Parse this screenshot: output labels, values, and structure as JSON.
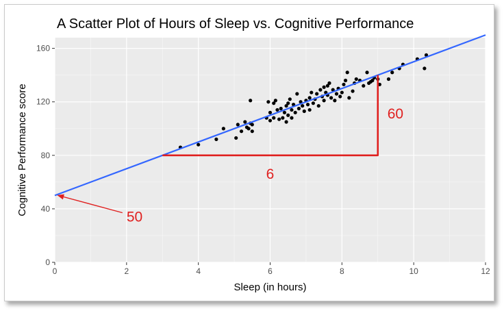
{
  "chart_data": {
    "type": "scatter",
    "title": "A Scatter Plot of Hours of Sleep vs. Cognitive Performance",
    "xlabel": "Sleep (in hours)",
    "ylabel": "Cognitive Performance score",
    "xlim": [
      0,
      12
    ],
    "ylim": [
      0,
      168
    ],
    "x_ticks": [
      0,
      2,
      4,
      6,
      8,
      10,
      12
    ],
    "x_tick_labels": [
      "0",
      "2",
      "4",
      "6",
      "8",
      "10",
      "12"
    ],
    "y_ticks": [
      0,
      40,
      80,
      120,
      160
    ],
    "y_tick_labels": [
      "0",
      "40",
      "80",
      "120",
      "160"
    ],
    "grid": true,
    "background": "#ebebeb",
    "point_color": "#000000",
    "regression_line": {
      "intercept": 50,
      "slope": 10,
      "color": "#3366ff"
    },
    "points": [
      [
        3.5,
        86
      ],
      [
        4.0,
        88
      ],
      [
        4.5,
        92
      ],
      [
        4.7,
        100
      ],
      [
        5.05,
        93
      ],
      [
        5.1,
        103
      ],
      [
        5.2,
        98
      ],
      [
        5.3,
        105
      ],
      [
        5.35,
        101
      ],
      [
        5.4,
        100
      ],
      [
        5.45,
        104
      ],
      [
        5.45,
        121
      ],
      [
        5.5,
        98
      ],
      [
        5.5,
        103
      ],
      [
        5.9,
        108
      ],
      [
        5.95,
        120
      ],
      [
        6.0,
        112
      ],
      [
        6.0,
        106
      ],
      [
        6.1,
        119
      ],
      [
        6.1,
        108
      ],
      [
        6.15,
        121
      ],
      [
        6.2,
        114
      ],
      [
        6.25,
        107
      ],
      [
        6.3,
        115
      ],
      [
        6.35,
        108
      ],
      [
        6.4,
        112
      ],
      [
        6.45,
        117
      ],
      [
        6.45,
        105
      ],
      [
        6.5,
        110
      ],
      [
        6.5,
        119
      ],
      [
        6.55,
        122
      ],
      [
        6.6,
        114
      ],
      [
        6.6,
        108
      ],
      [
        6.65,
        118
      ],
      [
        6.7,
        112
      ],
      [
        6.75,
        126
      ],
      [
        6.8,
        115
      ],
      [
        6.85,
        120
      ],
      [
        6.9,
        117
      ],
      [
        6.95,
        113
      ],
      [
        7.0,
        121
      ],
      [
        7.05,
        118
      ],
      [
        7.1,
        114
      ],
      [
        7.1,
        123
      ],
      [
        7.15,
        127
      ],
      [
        7.2,
        119
      ],
      [
        7.25,
        122
      ],
      [
        7.3,
        126
      ],
      [
        7.35,
        117
      ],
      [
        7.4,
        129
      ],
      [
        7.45,
        124
      ],
      [
        7.5,
        121
      ],
      [
        7.5,
        131
      ],
      [
        7.55,
        127
      ],
      [
        7.6,
        125
      ],
      [
        7.6,
        132
      ],
      [
        7.65,
        134
      ],
      [
        7.7,
        123
      ],
      [
        7.75,
        129
      ],
      [
        7.8,
        121
      ],
      [
        7.85,
        126
      ],
      [
        7.9,
        130
      ],
      [
        7.95,
        124
      ],
      [
        8.0,
        127
      ],
      [
        8.05,
        133
      ],
      [
        8.1,
        136
      ],
      [
        8.15,
        142
      ],
      [
        8.2,
        123
      ],
      [
        8.3,
        128
      ],
      [
        8.35,
        134
      ],
      [
        8.4,
        137
      ],
      [
        8.5,
        136
      ],
      [
        8.6,
        132
      ],
      [
        8.7,
        142
      ],
      [
        8.75,
        134
      ],
      [
        8.8,
        135
      ],
      [
        8.85,
        136
      ],
      [
        8.9,
        138
      ],
      [
        9.0,
        137
      ],
      [
        9.05,
        133
      ],
      [
        9.3,
        137
      ],
      [
        9.4,
        142
      ],
      [
        9.6,
        145
      ],
      [
        9.7,
        148
      ],
      [
        10.1,
        152
      ],
      [
        10.3,
        145
      ],
      [
        10.35,
        155
      ]
    ],
    "annotations": {
      "intercept": {
        "label": "50",
        "color": "#e0201f",
        "arrow_to": [
          0.1,
          50
        ],
        "text_at": [
          2.0,
          34
        ]
      },
      "run": {
        "label": "6",
        "color": "#e0201f",
        "from": [
          3,
          80
        ],
        "to": [
          9,
          80
        ]
      },
      "rise": {
        "label": "60",
        "color": "#e0201f",
        "from": [
          9,
          80
        ],
        "to": [
          9,
          140
        ]
      }
    }
  }
}
